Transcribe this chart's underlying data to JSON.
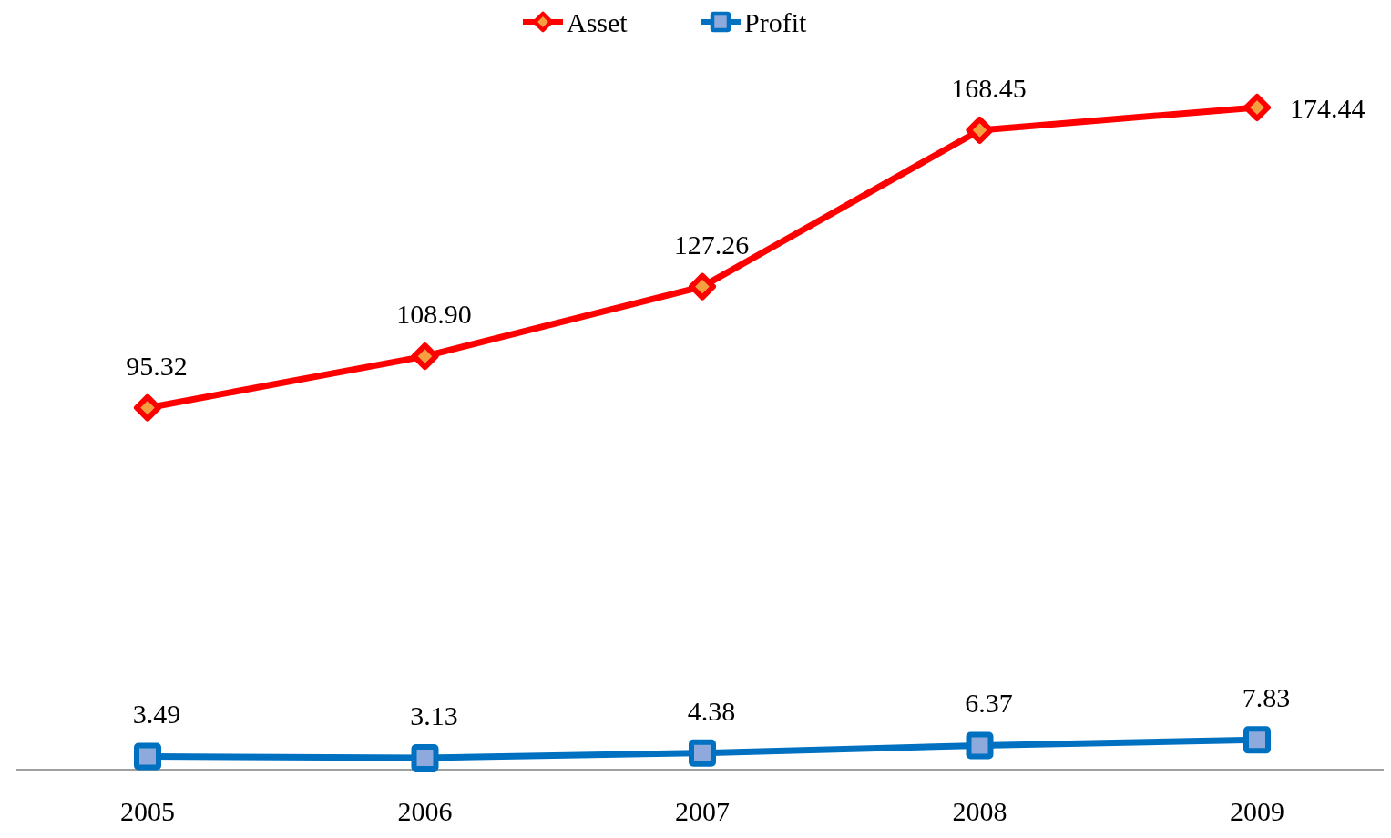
{
  "chart_data": {
    "type": "line",
    "categories": [
      "2005",
      "2006",
      "2007",
      "2008",
      "2009"
    ],
    "series": [
      {
        "name": "Asset",
        "color": "#ff0000",
        "values": [
          95.32,
          108.9,
          127.26,
          168.45,
          174.44
        ],
        "value_labels": [
          "95.32",
          "108.90",
          "127.26",
          "168.45",
          "174.44"
        ],
        "marker": "diamond"
      },
      {
        "name": "Profit",
        "color": "#0070c0",
        "values": [
          3.49,
          3.13,
          4.38,
          6.37,
          7.83
        ],
        "value_labels": [
          "3.49",
          "3.13",
          "4.38",
          "6.37",
          "7.83"
        ],
        "marker": "square"
      }
    ],
    "tick_labels": "x",
    "legend": "top",
    "line_style": "solid"
  }
}
